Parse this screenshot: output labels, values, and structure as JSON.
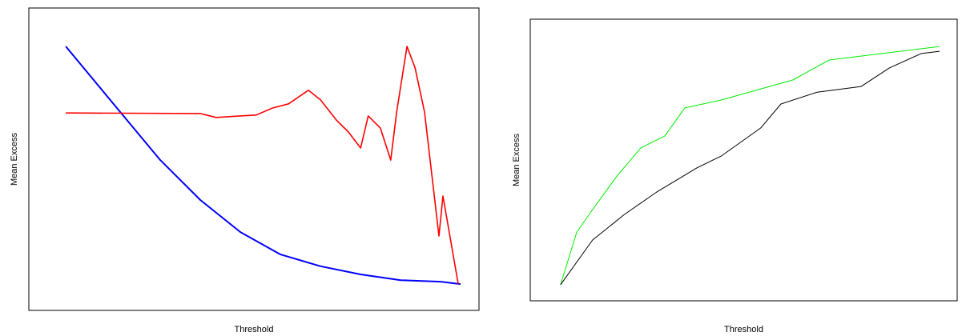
{
  "chart_data": [
    {
      "type": "line",
      "xlabel": "Threshold",
      "ylabel": "Mean Excess",
      "xlim": [
        0,
        100
      ],
      "ylim": [
        0,
        100
      ],
      "series": [
        {
          "color": "#0000ff",
          "x": [
            8.2,
            20.3,
            29.2,
            38.1,
            47,
            55.9,
            64.8,
            73.7,
            82.6,
            91.5,
            95.9
          ],
          "values": [
            87.3,
            65.6,
            49.7,
            36.5,
            25.9,
            18.5,
            14.6,
            11.9,
            10,
            9.5,
            8.7
          ]
        },
        {
          "color": "#ff0000",
          "x": [
            8.2,
            38.1,
            41.6,
            47,
            50.5,
            54.1,
            57.7,
            62.1,
            64.8,
            68.3,
            71,
            73.7,
            75.4,
            78.1,
            80.4,
            81.7,
            84,
            85.8,
            87.9,
            91.1,
            92,
            95.4
          ],
          "values": [
            65.3,
            65.1,
            63.8,
            64.3,
            64.6,
            66.9,
            68.3,
            72.8,
            69.6,
            63,
            59,
            53.7,
            64.3,
            60.3,
            49.7,
            65.6,
            87.3,
            80.2,
            65.6,
            24.6,
            37.8,
            8.7
          ]
        }
      ]
    },
    {
      "type": "line",
      "xlabel": "Threshold",
      "ylabel": "Mean Excess",
      "xlim": [
        0,
        100
      ],
      "ylim": [
        0,
        100
      ],
      "series": [
        {
          "color": "#00ee00",
          "x": [
            7.1,
            10.9,
            14.6,
            20.3,
            25.9,
            31.5,
            36.2,
            44.7,
            61.5,
            70,
            95.9
          ],
          "values": [
            5.7,
            24.4,
            32.4,
            44.3,
            54.3,
            58.5,
            68.5,
            71.3,
            78.4,
            85.5,
            90.3
          ]
        },
        {
          "color": "#000000",
          "x": [
            7.1,
            14.6,
            22.1,
            29.6,
            39,
            44.7,
            54,
            58.7,
            67.2,
            77.5,
            84.1,
            91.6,
            95.9
          ],
          "values": [
            5.7,
            21.6,
            30.7,
            38.6,
            47.2,
            51.4,
            61.4,
            69.9,
            74.1,
            76.1,
            82.7,
            87.8,
            88.6
          ]
        }
      ]
    }
  ]
}
